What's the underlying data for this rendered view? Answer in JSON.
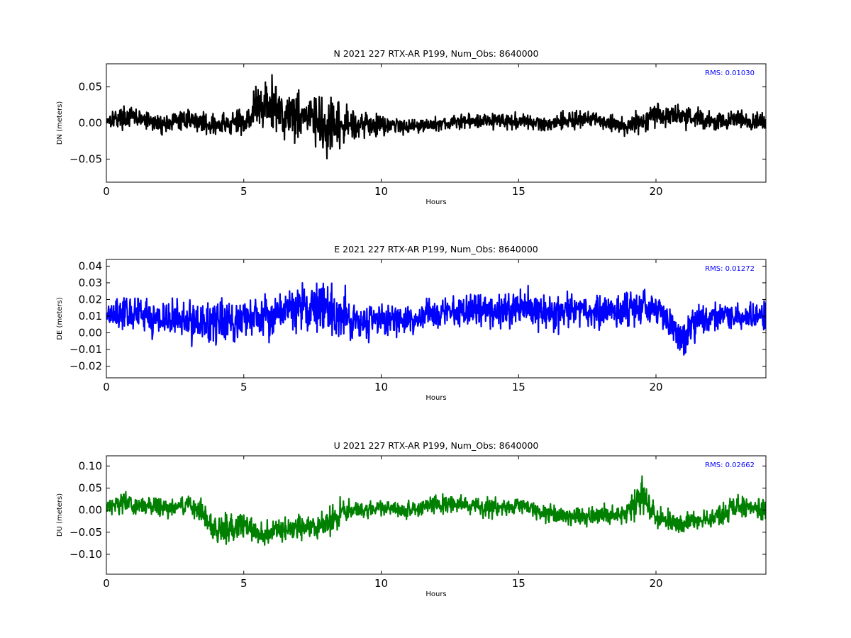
{
  "chart_data": [
    {
      "type": "line",
      "title": "N 2021 227 RTX-AR  P199, Num_Obs: 8640000",
      "xlabel": "Hours",
      "ylabel": "DN (meters)",
      "annotation": "RMS:  0.01030",
      "annotation_color": "#0000ff",
      "color": "#000000",
      "xlim": [
        0,
        24
      ],
      "ylim": [
        -0.082,
        0.082
      ],
      "xticks": [
        0,
        5,
        10,
        15,
        20
      ],
      "xtick_labels": [
        "0",
        "5",
        "10",
        "15",
        "20"
      ],
      "yticks": [
        -0.05,
        0.0,
        0.05
      ],
      "ytick_labels": [
        "−0.05",
        "0.00",
        "0.05"
      ],
      "grid": false,
      "series": [
        {
          "x": [
            0,
            1,
            2,
            3,
            4,
            5,
            5.5,
            6,
            6.5,
            7,
            7.5,
            8,
            8.5,
            9,
            9.5,
            10,
            11,
            12,
            13,
            14,
            15,
            16,
            17,
            18,
            19,
            20,
            21,
            22,
            23,
            24
          ],
          "y": [
            0.006,
            0.008,
            -0.002,
            0.006,
            -0.004,
            0.002,
            0.022,
            0.025,
            0.012,
            0.014,
            0.006,
            -0.012,
            -0.006,
            0.0,
            -0.002,
            -0.002,
            -0.004,
            -0.002,
            0.002,
            0.004,
            0.002,
            -0.001,
            0.005,
            0.003,
            -0.005,
            0.012,
            0.01,
            0.002,
            0.004,
            0.0
          ],
          "amp": [
            0.018,
            0.02,
            0.018,
            0.018,
            0.022,
            0.03,
            0.048,
            0.055,
            0.05,
            0.052,
            0.05,
            0.055,
            0.045,
            0.03,
            0.024,
            0.02,
            0.015,
            0.013,
            0.015,
            0.016,
            0.016,
            0.014,
            0.02,
            0.016,
            0.018,
            0.024,
            0.022,
            0.018,
            0.02,
            0.018
          ]
        }
      ]
    },
    {
      "type": "line",
      "title": "E 2021 227 RTX-AR  P199, Num_Obs: 8640000",
      "xlabel": "Hours",
      "ylabel": "DE (meters)",
      "annotation": "RMS:  0.01272",
      "annotation_color": "#0000ff",
      "color": "#0000ff",
      "xlim": [
        0,
        24
      ],
      "ylim": [
        -0.027,
        0.044
      ],
      "xticks": [
        0,
        5,
        10,
        15,
        20
      ],
      "xtick_labels": [
        "0",
        "5",
        "10",
        "15",
        "20"
      ],
      "yticks": [
        -0.02,
        -0.01,
        0.0,
        0.01,
        0.02,
        0.03,
        0.04
      ],
      "ytick_labels": [
        "−0.02",
        "−0.01",
        "0.00",
        "0.01",
        "0.02",
        "0.03",
        "0.04"
      ],
      "grid": false,
      "series": [
        {
          "x": [
            0,
            1,
            2,
            3,
            4,
            5,
            6,
            7,
            8,
            9,
            10,
            11,
            12,
            13,
            14,
            15,
            16,
            17,
            18,
            19,
            20,
            20.5,
            21,
            21.5,
            22,
            23,
            24
          ],
          "y": [
            0.012,
            0.012,
            0.008,
            0.008,
            0.006,
            0.008,
            0.012,
            0.015,
            0.014,
            0.008,
            0.008,
            0.007,
            0.012,
            0.014,
            0.013,
            0.016,
            0.012,
            0.014,
            0.012,
            0.014,
            0.016,
            0.004,
            -0.004,
            0.006,
            0.01,
            0.01,
            0.01
          ],
          "amp": [
            0.01,
            0.014,
            0.016,
            0.02,
            0.022,
            0.018,
            0.02,
            0.02,
            0.024,
            0.018,
            0.014,
            0.013,
            0.014,
            0.014,
            0.014,
            0.016,
            0.016,
            0.015,
            0.014,
            0.014,
            0.013,
            0.014,
            0.016,
            0.014,
            0.012,
            0.012,
            0.012
          ]
        }
      ]
    },
    {
      "type": "line",
      "title": "U 2021 227 RTX-AR  P199, Num_Obs: 8640000",
      "xlabel": "Hours",
      "ylabel": "DU (meters)",
      "annotation": "RMS:  0.02662",
      "annotation_color": "#0000ff",
      "color": "#008000",
      "xlim": [
        0,
        24
      ],
      "ylim": [
        -0.145,
        0.123
      ],
      "xticks": [
        0,
        5,
        10,
        15,
        20
      ],
      "xtick_labels": [
        "0",
        "5",
        "10",
        "15",
        "20"
      ],
      "yticks": [
        -0.1,
        -0.05,
        0.0,
        0.05,
        0.1
      ],
      "ytick_labels": [
        "−0.10",
        "−0.05",
        "0.00",
        "0.05",
        "0.10"
      ],
      "grid": false,
      "series": [
        {
          "x": [
            0,
            0.5,
            1,
            2,
            3,
            3.5,
            4,
            4.5,
            5,
            5.5,
            6,
            7,
            8,
            8.5,
            9,
            10,
            11,
            12,
            13,
            14,
            15,
            16,
            17,
            18,
            19,
            19.5,
            20,
            21,
            22,
            23,
            24
          ],
          "y": [
            0.01,
            0.018,
            0.01,
            0.005,
            0.01,
            0.0,
            -0.05,
            -0.035,
            -0.03,
            -0.06,
            -0.05,
            -0.04,
            -0.03,
            -0.01,
            0.0,
            0.005,
            0.0,
            0.015,
            0.012,
            0.005,
            0.01,
            -0.005,
            -0.015,
            -0.01,
            -0.005,
            0.04,
            -0.02,
            -0.03,
            -0.02,
            0.01,
            0.0
          ],
          "amp": [
            0.03,
            0.035,
            0.035,
            0.03,
            0.03,
            0.035,
            0.045,
            0.055,
            0.05,
            0.05,
            0.04,
            0.035,
            0.04,
            0.045,
            0.03,
            0.025,
            0.025,
            0.03,
            0.03,
            0.03,
            0.03,
            0.03,
            0.03,
            0.03,
            0.035,
            0.055,
            0.035,
            0.03,
            0.03,
            0.035,
            0.035
          ]
        }
      ]
    }
  ]
}
